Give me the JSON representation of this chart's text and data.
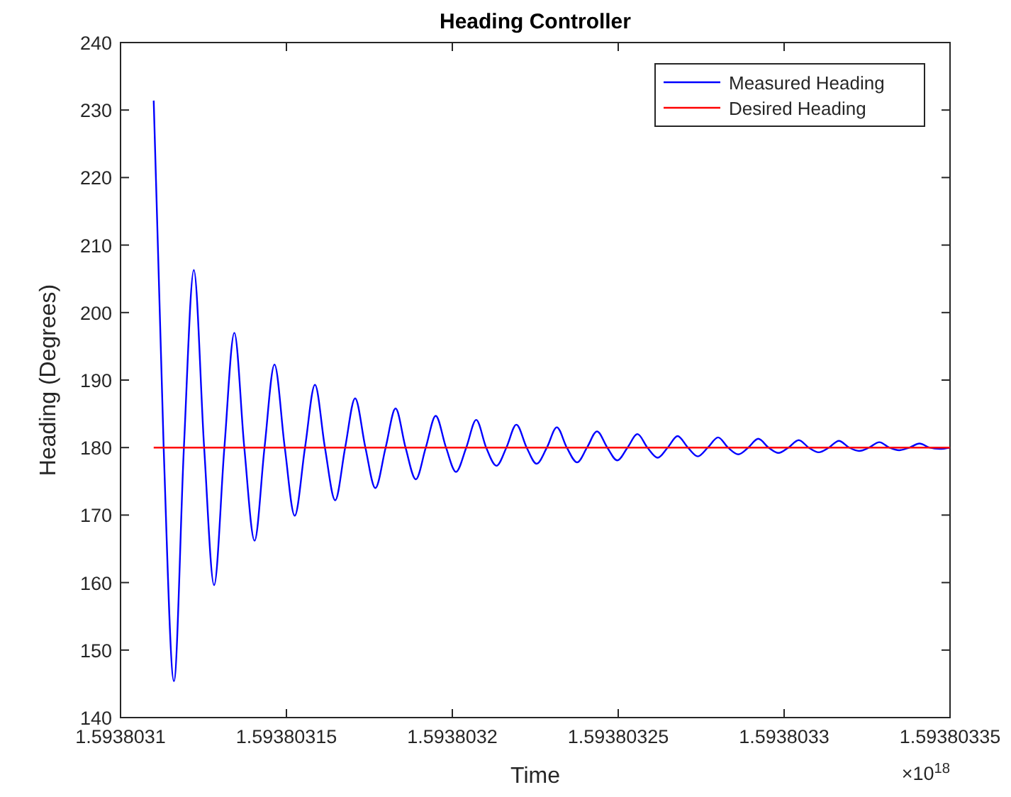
{
  "chart_data": {
    "type": "line",
    "title": "Heading Controller",
    "xlabel": "Time",
    "ylabel": "Heading (Degrees)",
    "annotations": [
      "×10$^{18}$"
    ],
    "xlim": [
      1.5938031,
      1.59380335
    ],
    "xticks": [
      1.5938031,
      1.59380315,
      1.5938032,
      1.59380325,
      1.5938033,
      1.59380335
    ],
    "ylim": [
      140,
      240
    ],
    "yticks": [
      140,
      150,
      160,
      170,
      180,
      190,
      200,
      210,
      220,
      230,
      240
    ],
    "grid": false,
    "legend": "top right",
    "line_style": "solid",
    "marker": "none",
    "series": [
      {
        "name": "Measured Heading",
        "color": "#0000ff",
        "x": [
          1.59380311,
          1.593803113,
          1.5938031161,
          1.5938031191,
          1.5938031221,
          1.5938031252,
          1.5938031282,
          1.5938031313,
          1.5938031343,
          1.5938031373,
          1.5938031404,
          1.5938031434,
          1.5938031464,
          1.5938031495,
          1.5938031525,
          1.5938031556,
          1.5938031586,
          1.5938031616,
          1.5938031647,
          1.5938031677,
          1.5938031707,
          1.5938031738,
          1.5938031768,
          1.5938031799,
          1.5938031829,
          1.5938031859,
          1.593803189,
          1.593803192,
          1.593803195,
          1.5938031981,
          1.5938032011,
          1.5938032042,
          1.5938032072,
          1.5938032102,
          1.5938032133,
          1.5938032163,
          1.5938032193,
          1.5938032224,
          1.5938032254,
          1.5938032285,
          1.5938032315,
          1.5938032345,
          1.5938032376,
          1.5938032406,
          1.5938032436,
          1.5938032467,
          1.5938032497,
          1.5938032528,
          1.5938032558,
          1.5938032588,
          1.5938032619,
          1.5938032649,
          1.5938032679,
          1.593803271,
          1.593803274,
          1.593803277,
          1.5938032801,
          1.5938032831,
          1.5938032862,
          1.5938032892,
          1.5938032922,
          1.5938032953,
          1.5938032983,
          1.5938033013,
          1.5938033044,
          1.5938033074,
          1.5938033104,
          1.5938033135,
          1.5938033165,
          1.5938033196,
          1.5938033226,
          1.5938033256,
          1.5938033287,
          1.5938033317,
          1.5938033347,
          1.5938033378,
          1.5938033408,
          1.5938033438,
          1.5938033469,
          1.59380335
        ],
        "values": [
          231.4,
          180,
          145.4,
          180,
          206.3,
          180,
          159.6,
          180,
          197.0,
          180,
          166.2,
          180,
          192.3,
          180,
          169.9,
          180,
          189.3,
          180,
          172.2,
          180,
          187.3,
          180,
          174.0,
          180,
          185.8,
          180,
          175.3,
          180,
          184.7,
          180,
          176.4,
          180,
          184.1,
          180,
          177.3,
          180,
          183.4,
          180,
          177.6,
          180,
          183.0,
          180,
          177.8,
          180,
          182.4,
          180,
          178.1,
          180,
          182.0,
          180,
          178.5,
          180,
          181.7,
          180,
          178.7,
          180,
          181.5,
          180,
          179.0,
          180,
          181.3,
          180,
          179.2,
          180,
          181.1,
          180,
          179.3,
          180,
          181.0,
          180,
          179.5,
          180,
          180.8,
          180,
          179.6,
          180,
          180.6,
          180,
          179.8,
          180.0
        ]
      },
      {
        "name": "Desired Heading",
        "color": "#ff0000",
        "x": [
          1.59380311,
          1.59380335
        ],
        "values": [
          180,
          180
        ]
      }
    ]
  }
}
